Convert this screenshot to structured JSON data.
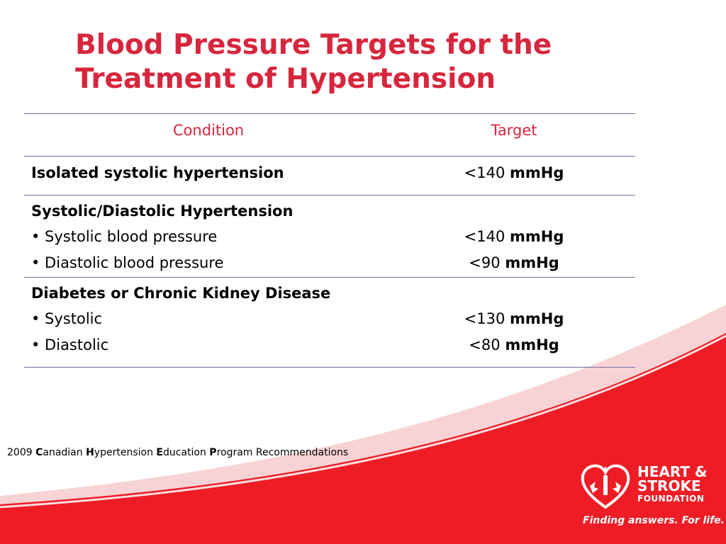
{
  "title": {
    "line1": "Blood Pressure Targets for the",
    "line2": "Treatment of Hypertension"
  },
  "table": {
    "headers": {
      "condition": "Condition",
      "target": "Target"
    },
    "rows": [
      {
        "condition": "Isolated systolic hypertension",
        "target_value": "<140",
        "target_unit": "mmHg"
      },
      {
        "condition": "Systolic/Diastolic Hypertension",
        "items": [
          {
            "label": "• Systolic blood pressure",
            "value": "<140",
            "unit": "mmHg"
          },
          {
            "label": "• Diastolic blood pressure",
            "value": "<90",
            "unit": "mmHg"
          }
        ]
      },
      {
        "condition": "Diabetes or Chronic Kidney Disease",
        "items": [
          {
            "label": "• Systolic",
            "value": "<130",
            "unit": "mmHg"
          },
          {
            "label": "• Diastolic",
            "value": "<80",
            "unit": "mmHg"
          }
        ]
      }
    ]
  },
  "footnote": {
    "year": "2009",
    "c": "C",
    "c_rest": "anadian",
    "h": "H",
    "h_rest": "ypertension",
    "e": "E",
    "e_rest": "ducation",
    "p": "P",
    "p_rest": "rogram Recommendations"
  },
  "logo": {
    "line1": "HEART &",
    "line2": "STROKE",
    "line3": "FOUNDATION",
    "tagline": "Finding answers. For life."
  },
  "colors": {
    "accent_red": "#d7263d",
    "swoosh_red": "#ee1c25",
    "rule_blue": "#6d6fa8"
  }
}
